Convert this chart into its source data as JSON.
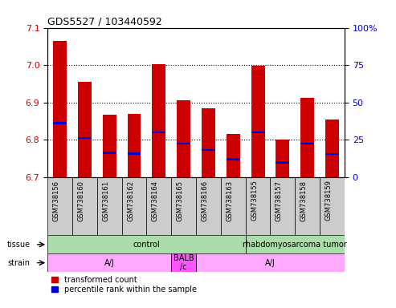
{
  "title": "GDS5527 / 103440592",
  "samples": [
    "GSM738156",
    "GSM738160",
    "GSM738161",
    "GSM738162",
    "GSM738164",
    "GSM738165",
    "GSM738166",
    "GSM738163",
    "GSM738155",
    "GSM738157",
    "GSM738158",
    "GSM738159"
  ],
  "bar_tops": [
    7.065,
    6.955,
    6.868,
    6.87,
    7.002,
    6.905,
    6.885,
    6.815,
    6.998,
    6.8,
    6.912,
    6.855
  ],
  "bar_bottoms": [
    6.7,
    6.7,
    6.7,
    6.7,
    6.7,
    6.7,
    6.7,
    6.7,
    6.7,
    6.7,
    6.7,
    6.7
  ],
  "blue_markers": [
    6.845,
    6.805,
    6.765,
    6.763,
    6.82,
    6.79,
    6.773,
    6.748,
    6.82,
    6.74,
    6.79,
    6.762
  ],
  "ylim": [
    6.7,
    7.1
  ],
  "y2lim": [
    0,
    100
  ],
  "yticks": [
    6.7,
    6.8,
    6.9,
    7.0,
    7.1
  ],
  "y2ticks": [
    0,
    25,
    50,
    75,
    100
  ],
  "bar_color": "#cc0000",
  "blue_color": "#0000cc",
  "tissue_groups": [
    {
      "label": "control",
      "start": 0,
      "end": 8,
      "color": "#aaddaa"
    },
    {
      "label": "rhabdomyosarcoma tumor",
      "start": 8,
      "end": 12,
      "color": "#aaddaa"
    }
  ],
  "strain_groups": [
    {
      "label": "A/J",
      "start": 0,
      "end": 5,
      "color": "#ffaaff"
    },
    {
      "label": "BALB\n/c",
      "start": 5,
      "end": 6,
      "color": "#ff55ff"
    },
    {
      "label": "A/J",
      "start": 6,
      "end": 12,
      "color": "#ffaaff"
    }
  ],
  "tissue_label": "tissue",
  "strain_label": "strain",
  "legend_red": "transformed count",
  "legend_blue": "percentile rank within the sample",
  "bar_width": 0.55,
  "grid_color": "#000000",
  "bg_color": "#ffffff",
  "tick_label_color_left": "#cc0000",
  "tick_label_color_right": "#0000cc",
  "xlabel_area_color": "#cccccc",
  "blue_bar_height": 0.006
}
